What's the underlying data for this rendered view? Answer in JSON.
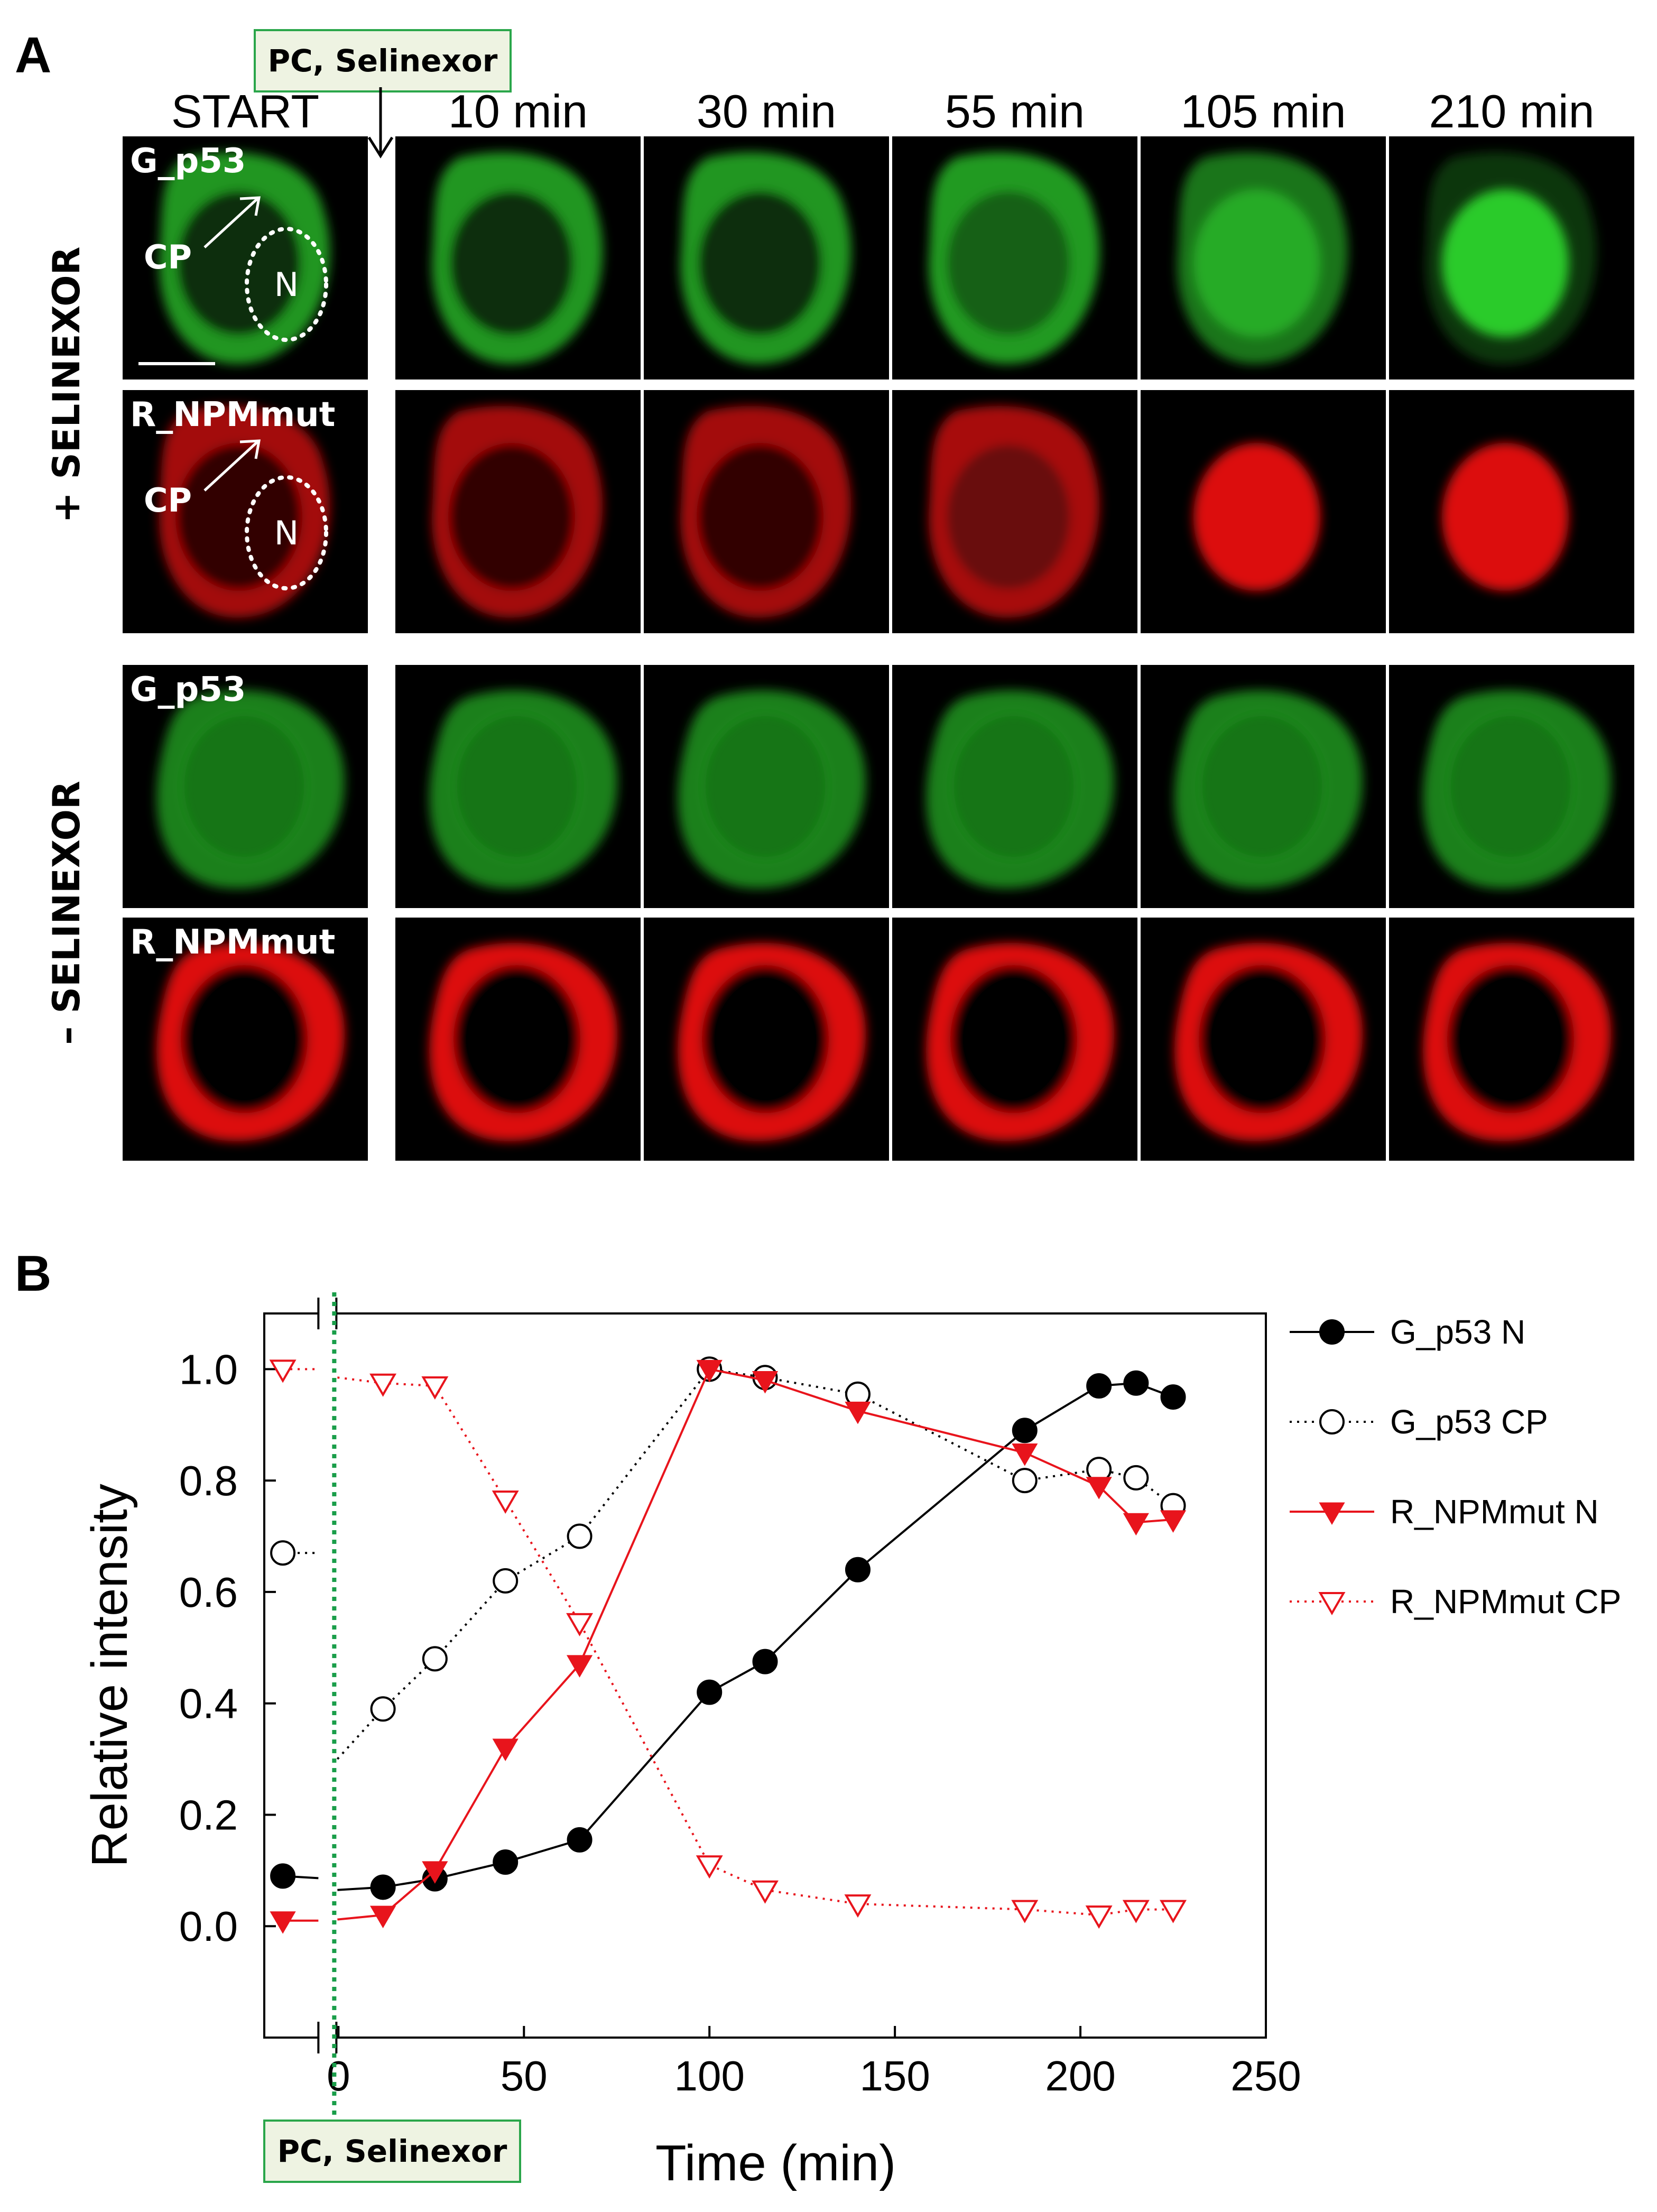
{
  "panel_a": {
    "letter": "A",
    "column_headers": [
      "START",
      "10 min",
      "30 min",
      "55 min",
      "105 min",
      "210 min"
    ],
    "callout": "PC, Selinexor",
    "groups": [
      {
        "label": "+ SELINEXOR",
        "rows": [
          {
            "channel": "green",
            "label": "G_p53",
            "stage": [
              "cyto",
              "cyto",
              "cyto",
              "cyto-mid",
              "nuc-mid",
              "nuc"
            ]
          },
          {
            "channel": "red",
            "label": "R_NPMmut",
            "stage": [
              "cyto",
              "cyto",
              "cyto",
              "cyto-mid",
              "nuc",
              "nuc"
            ]
          }
        ]
      },
      {
        "label": "– SELINEXOR",
        "rows": [
          {
            "channel": "green",
            "label": "G_p53",
            "stage": [
              "even",
              "even",
              "even",
              "even",
              "even",
              "even"
            ]
          },
          {
            "channel": "red",
            "label": "R_NPMmut",
            "stage": [
              "ring",
              "ring",
              "ring",
              "ring",
              "ring",
              "ring"
            ]
          }
        ]
      }
    ],
    "annotations": {
      "cp": "CP",
      "n": "N"
    },
    "colors": {
      "green": "#2ed62e",
      "red": "#e81010"
    }
  },
  "panel_b": {
    "letter": "B",
    "callout": "PC, Selinexor"
  },
  "chart_data": {
    "type": "line",
    "xlabel": "Time (min)",
    "ylabel": "Relative intensity",
    "xlim": [
      -20,
      250
    ],
    "ylim": [
      -0.2,
      1.1
    ],
    "x_ticks": [
      0,
      50,
      100,
      150,
      200,
      250
    ],
    "y_ticks": [
      0.0,
      0.2,
      0.4,
      0.6,
      0.8,
      1.0
    ],
    "treatment_time": 0,
    "legend_position": "right",
    "series": [
      {
        "name": "G_p53 N",
        "style": "solid",
        "marker": "filled-circle",
        "color": "#000000",
        "x": [
          -15,
          12,
          26,
          45,
          65,
          100,
          115,
          140,
          185,
          205,
          215,
          225
        ],
        "y": [
          0.09,
          0.07,
          0.085,
          0.115,
          0.155,
          0.42,
          0.475,
          0.64,
          0.89,
          0.97,
          0.975,
          0.95
        ]
      },
      {
        "name": "G_p53 CP",
        "style": "dotted",
        "marker": "open-circle",
        "color": "#000000",
        "x": [
          -15,
          12,
          26,
          45,
          65,
          100,
          115,
          140,
          185,
          205,
          215,
          225
        ],
        "y": [
          0.67,
          0.39,
          0.48,
          0.62,
          0.7,
          1.0,
          0.985,
          0.955,
          0.8,
          0.82,
          0.805,
          0.755
        ]
      },
      {
        "name": "R_NPMmut N",
        "style": "solid",
        "marker": "filled-triangle-down",
        "color": "#e8141c",
        "x": [
          -15,
          12,
          26,
          45,
          65,
          100,
          115,
          140,
          185,
          205,
          215,
          225
        ],
        "y": [
          0.01,
          0.02,
          0.1,
          0.32,
          0.47,
          1.0,
          0.98,
          0.925,
          0.85,
          0.79,
          0.725,
          0.73
        ]
      },
      {
        "name": "R_NPMmut CP",
        "style": "dotted",
        "marker": "open-triangle-down",
        "color": "#e8141c",
        "x": [
          -15,
          12,
          26,
          45,
          65,
          100,
          115,
          140,
          185,
          205,
          215,
          225
        ],
        "y": [
          1.0,
          0.975,
          0.97,
          0.765,
          0.545,
          0.11,
          0.065,
          0.04,
          0.03,
          0.02,
          0.03,
          0.03
        ]
      }
    ]
  }
}
